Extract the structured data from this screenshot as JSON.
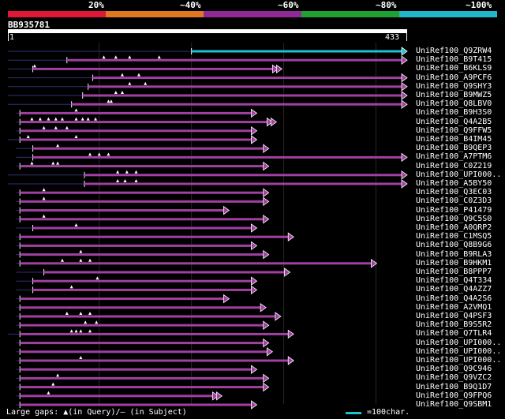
{
  "colors": {
    "background": "#000000",
    "query_bar": "#ffffff",
    "hit_bar": "#a040a0",
    "hit_bar_top": "#20c0d0",
    "gap_line": "#303070",
    "gap_marker": "#ffffff",
    "grid": "#282828"
  },
  "scale": {
    "bands": [
      {
        "label": "20%",
        "color": "#e01838"
      },
      {
        "label": "~40%",
        "color": "#e07820"
      },
      {
        "label": "~60%",
        "color": "#902898"
      },
      {
        "label": "~80%",
        "color": "#20a030"
      },
      {
        "label": "~100%",
        "color": "#20b8c8"
      }
    ]
  },
  "query": {
    "name": "BB935781",
    "start": 1,
    "end": 433
  },
  "legend": {
    "gaps_text": "Large gaps: ▲(in Query)/– (in Subject)",
    "scale_text": "=100char."
  },
  "chart_data": {
    "type": "alignment-overview",
    "query_length": 433,
    "hits": [
      {
        "name": "UniRef100_Q9ZRW4",
        "start": 200,
        "end": 433,
        "gap_from": 1,
        "marks": [],
        "color": "#20c0d0"
      },
      {
        "name": "UniRef100_B9T415",
        "start": 65,
        "end": 433,
        "gap_from": 1,
        "marks": [
          105,
          118,
          133,
          165
        ]
      },
      {
        "name": "UniRef100_B6KLS9",
        "start": 28,
        "end": 293,
        "gap_from": 1,
        "marks": [
          30
        ],
        "double": true
      },
      {
        "name": "UniRef100_A9PCF6",
        "start": 93,
        "end": 433,
        "gap_from": 1,
        "marks": [
          125,
          143
        ]
      },
      {
        "name": "UniRef100_Q9SHY3",
        "start": 88,
        "end": 433,
        "gap_from": 1,
        "marks": [
          133,
          150
        ]
      },
      {
        "name": "UniRef100_B9MWZ5",
        "start": 82,
        "end": 433,
        "gap_from": 1,
        "marks": [
          118,
          125
        ]
      },
      {
        "name": "UniRef100_Q8LBV0",
        "start": 70,
        "end": 433,
        "gap_from": 1,
        "marks": [
          110,
          113
        ]
      },
      {
        "name": "UniRef100_B9H3S0",
        "start": 14,
        "end": 270,
        "gap_from": 10,
        "marks": [
          75
        ]
      },
      {
        "name": "UniRef100_Q4A2B5",
        "start": 14,
        "end": 287,
        "gap_from": 10,
        "marks": [
          27,
          36,
          45,
          53,
          60,
          75,
          82,
          88,
          96
        ],
        "double": true
      },
      {
        "name": "UniRef100_Q9FFW5",
        "start": 14,
        "end": 270,
        "gap_from": 10,
        "marks": [
          40,
          53,
          65
        ]
      },
      {
        "name": "UniRef100_B4IM45",
        "start": 14,
        "end": 270,
        "gap_from": 1,
        "marks": [
          23,
          75
        ]
      },
      {
        "name": "UniRef100_B9QEP3",
        "start": 28,
        "end": 283,
        "gap_from": 10,
        "marks": [
          55
        ]
      },
      {
        "name": "UniRef100_A7PTM6",
        "start": 28,
        "end": 433,
        "gap_from": 10,
        "marks": [
          90,
          100,
          110
        ]
      },
      {
        "name": "UniRef100_C0Z219",
        "start": 14,
        "end": 283,
        "gap_from": 10,
        "marks": [
          27,
          50,
          55
        ]
      },
      {
        "name": "UniRef100_UPI000..",
        "start": 84,
        "end": 433,
        "gap_from": 1,
        "marks": [
          120,
          130,
          140
        ]
      },
      {
        "name": "UniRef100_A5BY50",
        "start": 84,
        "end": 433,
        "gap_from": 1,
        "marks": [
          120,
          128,
          140
        ]
      },
      {
        "name": "UniRef100_Q3EC03",
        "start": 14,
        "end": 283,
        "gap_from": 10,
        "marks": [
          40
        ]
      },
      {
        "name": "UniRef100_C0Z3D3",
        "start": 14,
        "end": 283,
        "gap_from": 10,
        "marks": [
          40
        ]
      },
      {
        "name": "UniRef100_P41479",
        "start": 14,
        "end": 240,
        "gap_from": 10,
        "marks": []
      },
      {
        "name": "UniRef100_Q9C5S0",
        "start": 14,
        "end": 283,
        "gap_from": 10,
        "marks": [
          40
        ]
      },
      {
        "name": "UniRef100_A0QRP2",
        "start": 28,
        "end": 270,
        "gap_from": 10,
        "marks": [
          75
        ]
      },
      {
        "name": "UniRef100_C1MSQ5",
        "start": 14,
        "end": 310,
        "gap_from": 10,
        "marks": []
      },
      {
        "name": "UniRef100_Q8B9G6",
        "start": 14,
        "end": 270,
        "gap_from": 10,
        "marks": []
      },
      {
        "name": "UniRef100_B9RLA3",
        "start": 14,
        "end": 283,
        "gap_from": 10,
        "marks": [
          80
        ]
      },
      {
        "name": "UniRef100_B9HKM1",
        "start": 14,
        "end": 400,
        "gap_from": 10,
        "marks": [
          60,
          80,
          90
        ]
      },
      {
        "name": "UniRef100_B8PPP7",
        "start": 40,
        "end": 306,
        "gap_from": 10,
        "marks": []
      },
      {
        "name": "UniRef100_Q4T334",
        "start": 28,
        "end": 270,
        "gap_from": 10,
        "marks": [
          98
        ]
      },
      {
        "name": "UniRef100_Q4AZZ7",
        "start": 28,
        "end": 270,
        "gap_from": 10,
        "marks": [
          70
        ]
      },
      {
        "name": "UniRef100_Q4A2S6",
        "start": 14,
        "end": 240,
        "gap_from": 10,
        "marks": []
      },
      {
        "name": "UniRef100_A2VMQ1",
        "start": 14,
        "end": 280,
        "gap_from": 10,
        "marks": []
      },
      {
        "name": "UniRef100_Q4PSF3",
        "start": 14,
        "end": 296,
        "gap_from": 10,
        "marks": [
          65,
          80,
          90
        ]
      },
      {
        "name": "UniRef100_B9S5R2",
        "start": 14,
        "end": 283,
        "gap_from": 10,
        "marks": [
          85,
          97
        ]
      },
      {
        "name": "UniRef100_Q7TLR4",
        "start": 14,
        "end": 310,
        "gap_from": 1,
        "marks": [
          70,
          75,
          80,
          90
        ]
      },
      {
        "name": "UniRef100_UPI000..",
        "start": 14,
        "end": 283,
        "gap_from": 10,
        "marks": []
      },
      {
        "name": "UniRef100_UPI000..",
        "start": 14,
        "end": 287,
        "gap_from": 10,
        "marks": []
      },
      {
        "name": "UniRef100_UPI000..",
        "start": 14,
        "end": 310,
        "gap_from": 10,
        "marks": [
          80
        ]
      },
      {
        "name": "UniRef100_Q9C946",
        "start": 14,
        "end": 270,
        "gap_from": 10,
        "marks": []
      },
      {
        "name": "UniRef100_Q9VZC2",
        "start": 14,
        "end": 283,
        "gap_from": 10,
        "marks": [
          55
        ]
      },
      {
        "name": "UniRef100_B9Q1D7",
        "start": 14,
        "end": 283,
        "gap_from": 10,
        "marks": [
          50
        ]
      },
      {
        "name": "UniRef100_Q9FPQ6",
        "start": 14,
        "end": 228,
        "gap_from": 10,
        "marks": [
          45
        ],
        "double": true
      },
      {
        "name": "UniRef100_Q9SBM1",
        "start": 14,
        "end": 270,
        "gap_from": 10,
        "marks": []
      }
    ]
  }
}
